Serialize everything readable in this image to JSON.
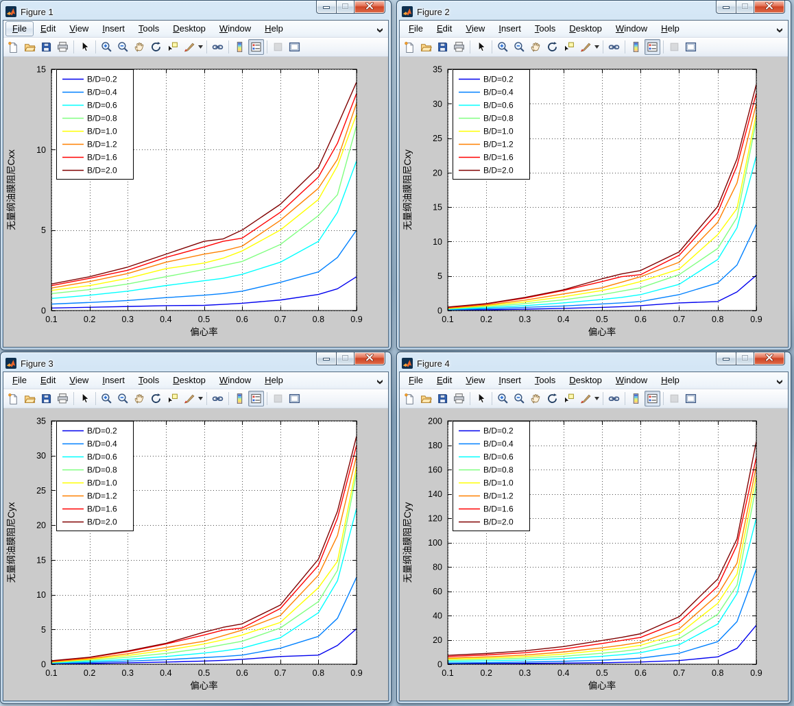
{
  "menu": {
    "items": [
      "File",
      "Edit",
      "View",
      "Insert",
      "Tools",
      "Desktop",
      "Window",
      "Help"
    ]
  },
  "window_controls": {
    "minimize": "minimize",
    "maximize": "maximize",
    "close": "close"
  },
  "toolbar": {
    "items": [
      {
        "type": "button",
        "name": "new-figure"
      },
      {
        "type": "button",
        "name": "open-file"
      },
      {
        "type": "button",
        "name": "save-figure"
      },
      {
        "type": "button",
        "name": "print-figure"
      },
      {
        "type": "separator"
      },
      {
        "type": "button",
        "name": "edit-plot-pointer"
      },
      {
        "type": "separator"
      },
      {
        "type": "button",
        "name": "zoom-in"
      },
      {
        "type": "button",
        "name": "zoom-out"
      },
      {
        "type": "button",
        "name": "pan"
      },
      {
        "type": "button",
        "name": "rotate-3d"
      },
      {
        "type": "button",
        "name": "data-cursor"
      },
      {
        "type": "button",
        "name": "brush-data"
      },
      {
        "type": "dropdown-arrow",
        "name": "brush-dropdown"
      },
      {
        "type": "separator"
      },
      {
        "type": "button",
        "name": "link-plot"
      },
      {
        "type": "separator"
      },
      {
        "type": "button",
        "name": "insert-colorbar"
      },
      {
        "type": "button",
        "name": "insert-legend",
        "pressed": true
      },
      {
        "type": "separator"
      },
      {
        "type": "button",
        "name": "hide-plot-tools",
        "disabled": true
      },
      {
        "type": "button",
        "name": "show-plot-tools"
      }
    ]
  },
  "windows": [
    {
      "title": "Figure 1",
      "file_menu_focused": true,
      "chart_index": 0
    },
    {
      "title": "Figure 2",
      "file_menu_focused": false,
      "chart_index": 1
    },
    {
      "title": "Figure 3",
      "file_menu_focused": false,
      "chart_index": 2
    },
    {
      "title": "Figure 4",
      "file_menu_focused": false,
      "chart_index": 3
    }
  ],
  "chart_data": [
    {
      "type": "line",
      "title": "",
      "xlabel": "偏心率",
      "ylabel": "无量纲油膜阻尼Cxx",
      "xlim": [
        0.1,
        0.9
      ],
      "ylim": [
        0,
        15
      ],
      "grid": true,
      "legend_position": "upper-left",
      "xticks": [
        0.1,
        0.2,
        0.3,
        0.4,
        0.5,
        0.6,
        0.7,
        0.8,
        0.9
      ],
      "xtick_labels": [
        "0.1",
        "0.2",
        "0.3",
        "0.4",
        "0.5",
        "0.6",
        "0.7",
        "0.8",
        "0.9"
      ],
      "yticks": [
        0,
        5,
        10,
        15
      ],
      "x": [
        0.1,
        0.2,
        0.3,
        0.4,
        0.5,
        0.55,
        0.6,
        0.7,
        0.8,
        0.85,
        0.9
      ],
      "series": [
        {
          "name": "B/D=0.2",
          "color": "#0000EE",
          "values": [
            0.15,
            0.2,
            0.25,
            0.3,
            0.32,
            0.38,
            0.45,
            0.65,
            1.0,
            1.35,
            2.1
          ]
        },
        {
          "name": "B/D=0.4",
          "color": "#0080FF",
          "values": [
            0.4,
            0.5,
            0.62,
            0.8,
            0.95,
            1.05,
            1.2,
            1.75,
            2.4,
            3.3,
            5.0
          ]
        },
        {
          "name": "B/D=0.6",
          "color": "#00FFFF",
          "values": [
            0.75,
            0.95,
            1.2,
            1.55,
            1.85,
            2.0,
            2.25,
            3.0,
            4.3,
            6.1,
            9.3
          ]
        },
        {
          "name": "B/D=0.8",
          "color": "#80FF80",
          "values": [
            1.05,
            1.3,
            1.65,
            2.1,
            2.55,
            2.8,
            3.05,
            4.1,
            5.9,
            7.2,
            11.5
          ]
        },
        {
          "name": "B/D=1.0",
          "color": "#FFFF00",
          "values": [
            1.25,
            1.55,
            2.0,
            2.6,
            2.95,
            3.25,
            3.7,
            5.0,
            6.9,
            9.0,
            12.2
          ]
        },
        {
          "name": "B/D=1.2",
          "color": "#FF8000",
          "values": [
            1.4,
            1.8,
            2.3,
            3.0,
            3.5,
            3.7,
            4.0,
            5.6,
            7.6,
            9.4,
            12.9
          ]
        },
        {
          "name": "B/D=1.6",
          "color": "#FF0000",
          "values": [
            1.55,
            2.0,
            2.5,
            3.3,
            3.95,
            4.3,
            4.5,
            6.1,
            8.3,
            10.4,
            13.5
          ]
        },
        {
          "name": "B/D=2.0",
          "color": "#800000",
          "values": [
            1.65,
            2.1,
            2.7,
            3.5,
            4.3,
            4.45,
            5.0,
            6.6,
            8.9,
            11.5,
            14.2
          ]
        }
      ]
    },
    {
      "type": "line",
      "title": "",
      "xlabel": "偏心率",
      "ylabel": "无量纲油膜阻尼Cxy",
      "xlim": [
        0.1,
        0.9
      ],
      "ylim": [
        0,
        35
      ],
      "grid": true,
      "legend_position": "upper-left",
      "xticks": [
        0.1,
        0.2,
        0.3,
        0.4,
        0.5,
        0.6,
        0.7,
        0.8,
        0.9
      ],
      "xtick_labels": [
        "0.1",
        "0.2",
        "0.3",
        "0.4",
        "0.5",
        "0.6",
        "0.7",
        "0.8",
        "0.9"
      ],
      "yticks": [
        0,
        5,
        10,
        15,
        20,
        25,
        30,
        35
      ],
      "x": [
        0.1,
        0.2,
        0.3,
        0.4,
        0.5,
        0.55,
        0.6,
        0.7,
        0.8,
        0.85,
        0.9
      ],
      "series": [
        {
          "name": "B/D=0.2",
          "color": "#0000EE",
          "values": [
            0.05,
            0.1,
            0.2,
            0.3,
            0.45,
            0.55,
            0.7,
            1.1,
            1.3,
            2.7,
            5.1
          ]
        },
        {
          "name": "B/D=0.4",
          "color": "#0080FF",
          "values": [
            0.1,
            0.25,
            0.45,
            0.65,
            0.95,
            1.1,
            1.3,
            2.3,
            4.0,
            6.6,
            12.5
          ]
        },
        {
          "name": "B/D=0.6",
          "color": "#00FFFF",
          "values": [
            0.2,
            0.4,
            0.7,
            1.1,
            1.6,
            1.9,
            2.3,
            3.8,
            7.4,
            12.0,
            22.4
          ]
        },
        {
          "name": "B/D=0.8",
          "color": "#80FF80",
          "values": [
            0.25,
            0.55,
            1.0,
            1.55,
            2.3,
            2.8,
            3.3,
            5.2,
            9.0,
            13.5,
            27.5
          ]
        },
        {
          "name": "B/D=1.0",
          "color": "#FFFF00",
          "values": [
            0.3,
            0.7,
            1.25,
            2.0,
            2.9,
            3.5,
            4.2,
            6.0,
            11.0,
            14.8,
            28.5
          ]
        },
        {
          "name": "B/D=1.2",
          "color": "#FF8000",
          "values": [
            0.35,
            0.8,
            1.5,
            2.4,
            3.3,
            4.1,
            4.9,
            7.0,
            12.8,
            18.5,
            30.0
          ]
        },
        {
          "name": "B/D=1.6",
          "color": "#FF0000",
          "values": [
            0.45,
            0.95,
            1.8,
            2.9,
            4.2,
            4.9,
            5.2,
            8.0,
            14.2,
            21.0,
            31.5
          ]
        },
        {
          "name": "B/D=2.0",
          "color": "#800000",
          "values": [
            0.5,
            1.0,
            1.9,
            3.0,
            4.6,
            5.3,
            5.8,
            8.5,
            15.1,
            22.0,
            32.8
          ]
        }
      ]
    },
    {
      "type": "line",
      "title": "",
      "xlabel": "偏心率",
      "ylabel": "无量纲油膜阻尼Cyx",
      "xlim": [
        0.1,
        0.9
      ],
      "ylim": [
        0,
        35
      ],
      "grid": true,
      "legend_position": "upper-left",
      "xticks": [
        0.1,
        0.2,
        0.3,
        0.4,
        0.5,
        0.6,
        0.7,
        0.8,
        0.9
      ],
      "xtick_labels": [
        "0.1",
        "0.2",
        "0.3",
        "0.4",
        "0.5",
        "0.6",
        "0.7",
        "0.8",
        "0.9"
      ],
      "yticks": [
        0,
        5,
        10,
        15,
        20,
        25,
        30,
        35
      ],
      "x": [
        0.1,
        0.2,
        0.3,
        0.4,
        0.5,
        0.55,
        0.6,
        0.7,
        0.8,
        0.85,
        0.9
      ],
      "series": [
        {
          "name": "B/D=0.2",
          "color": "#0000EE",
          "values": [
            0.05,
            0.1,
            0.2,
            0.3,
            0.45,
            0.55,
            0.7,
            1.1,
            1.3,
            2.7,
            5.1
          ]
        },
        {
          "name": "B/D=0.4",
          "color": "#0080FF",
          "values": [
            0.1,
            0.25,
            0.45,
            0.65,
            0.95,
            1.1,
            1.3,
            2.3,
            4.0,
            6.6,
            12.5
          ]
        },
        {
          "name": "B/D=0.6",
          "color": "#00FFFF",
          "values": [
            0.2,
            0.4,
            0.7,
            1.1,
            1.6,
            1.9,
            2.3,
            3.8,
            7.4,
            12.0,
            22.4
          ]
        },
        {
          "name": "B/D=0.8",
          "color": "#80FF80",
          "values": [
            0.25,
            0.55,
            1.0,
            1.55,
            2.3,
            2.8,
            3.3,
            5.2,
            9.0,
            13.5,
            27.5
          ]
        },
        {
          "name": "B/D=1.0",
          "color": "#FFFF00",
          "values": [
            0.3,
            0.7,
            1.25,
            2.0,
            2.9,
            3.5,
            4.2,
            6.0,
            11.0,
            14.8,
            28.5
          ]
        },
        {
          "name": "B/D=1.2",
          "color": "#FF8000",
          "values": [
            0.35,
            0.8,
            1.5,
            2.4,
            3.3,
            4.1,
            4.9,
            7.0,
            12.8,
            18.5,
            30.0
          ]
        },
        {
          "name": "B/D=1.6",
          "color": "#FF0000",
          "values": [
            0.45,
            0.95,
            1.8,
            2.9,
            4.2,
            4.9,
            5.2,
            8.0,
            14.2,
            21.0,
            31.5
          ]
        },
        {
          "name": "B/D=2.0",
          "color": "#800000",
          "values": [
            0.5,
            1.0,
            1.9,
            3.0,
            4.6,
            5.3,
            5.8,
            8.5,
            15.1,
            22.0,
            32.8
          ]
        }
      ]
    },
    {
      "type": "line",
      "title": "",
      "xlabel": "偏心率",
      "ylabel": "无量纲油膜阻尼Cyy",
      "xlim": [
        0.1,
        0.9
      ],
      "ylim": [
        0,
        200
      ],
      "grid": true,
      "legend_position": "upper-left",
      "xticks": [
        0.1,
        0.2,
        0.3,
        0.4,
        0.5,
        0.6,
        0.7,
        0.8,
        0.9
      ],
      "xtick_labels": [
        "0.1",
        "0.2",
        "0.3",
        "0.4",
        "0.5",
        "0.6",
        "0.7",
        "0.8",
        "0.9"
      ],
      "yticks": [
        0,
        20,
        40,
        60,
        80,
        100,
        120,
        140,
        160,
        180,
        200
      ],
      "x": [
        0.1,
        0.2,
        0.3,
        0.4,
        0.5,
        0.55,
        0.6,
        0.7,
        0.8,
        0.85,
        0.9
      ],
      "series": [
        {
          "name": "B/D=0.2",
          "color": "#0000EE",
          "values": [
            0.3,
            0.5,
            0.7,
            0.9,
            1.2,
            1.5,
            1.8,
            3.0,
            6.0,
            13.0,
            32
          ]
        },
        {
          "name": "B/D=0.4",
          "color": "#0080FF",
          "values": [
            1.0,
            1.3,
            1.8,
            2.4,
            3.3,
            4.0,
            5.0,
            9.0,
            18.5,
            35,
            78
          ]
        },
        {
          "name": "B/D=0.6",
          "color": "#00FFFF",
          "values": [
            2.2,
            2.7,
            3.4,
            4.6,
            6.5,
            7.8,
            9.5,
            16.0,
            33,
            58,
            120
          ]
        },
        {
          "name": "B/D=0.8",
          "color": "#80FF80",
          "values": [
            3.2,
            3.9,
            4.9,
            6.5,
            9.0,
            10.5,
            12.5,
            21.0,
            41,
            65,
            147
          ]
        },
        {
          "name": "B/D=1.0",
          "color": "#FFFF00",
          "values": [
            4.2,
            5.0,
            6.2,
            8.3,
            11.5,
            13.2,
            15.5,
            25.0,
            50,
            74,
            155
          ]
        },
        {
          "name": "B/D=1.2",
          "color": "#FF8000",
          "values": [
            5.0,
            6.0,
            7.5,
            10.0,
            13.5,
            15.5,
            18.0,
            29.0,
            57,
            83,
            163
          ]
        },
        {
          "name": "B/D=1.6",
          "color": "#FF0000",
          "values": [
            6.3,
            7.6,
            9.4,
            12.4,
            17.0,
            19.5,
            22.0,
            34.5,
            64,
            98,
            170
          ]
        },
        {
          "name": "B/D=2.0",
          "color": "#800000",
          "values": [
            7.3,
            8.8,
            11.0,
            14.5,
            19.5,
            22.0,
            25.0,
            39.0,
            70,
            103,
            183
          ]
        }
      ]
    }
  ]
}
